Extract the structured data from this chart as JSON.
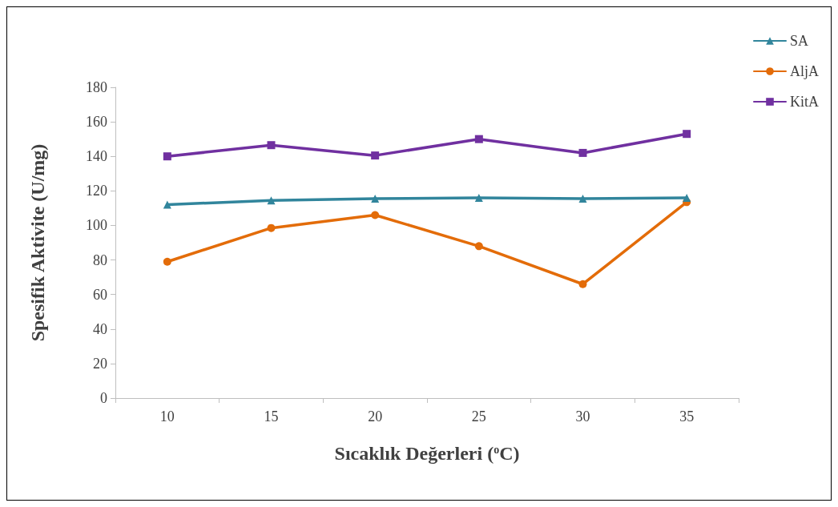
{
  "chart_data": {
    "type": "line",
    "xlabel": "Sıcaklık Değerleri ($^{o}$C)",
    "ylabel": "Spesifik Aktivite (U/mg)",
    "categories": [
      "10",
      "15",
      "20",
      "25",
      "30",
      "35"
    ],
    "series": [
      {
        "name": "SA",
        "color": "#31859c",
        "marker": "triangle",
        "values": [
          112,
          114.5,
          115.5,
          116,
          115.5,
          116
        ]
      },
      {
        "name": "AljA",
        "color": "#e36c09",
        "marker": "circle",
        "values": [
          79,
          98.5,
          106,
          88,
          66,
          113.5
        ]
      },
      {
        "name": "KitA",
        "color": "#7030a0",
        "marker": "square",
        "values": [
          140,
          146.5,
          140.5,
          150,
          142,
          153
        ]
      }
    ],
    "ylim": [
      0,
      180
    ],
    "yticks": [
      0,
      20,
      40,
      60,
      80,
      100,
      120,
      140,
      160,
      180
    ],
    "grid": false,
    "legend": "top right",
    "line_style": "solid"
  }
}
